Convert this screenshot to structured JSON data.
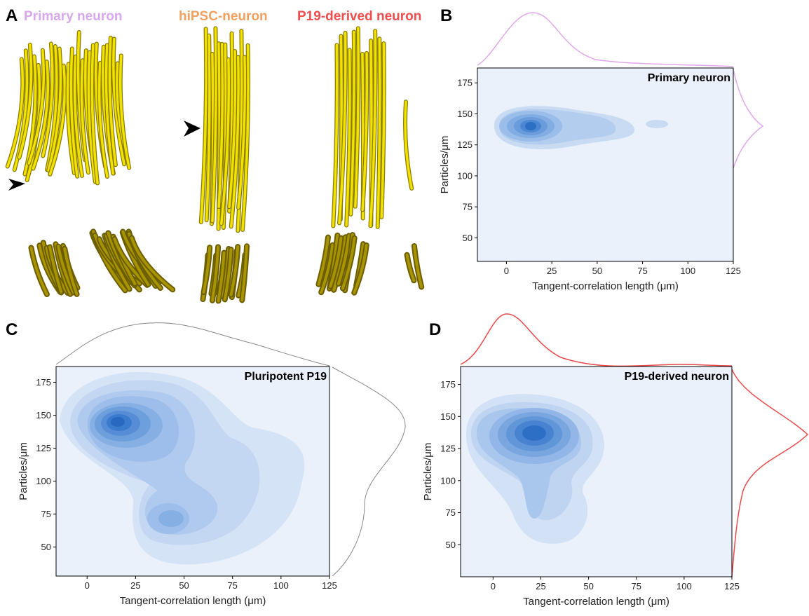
{
  "panel_labels": [
    "A",
    "B",
    "C",
    "D"
  ],
  "panel_a": {
    "titles": [
      "Primary neuron",
      "hiPSC-neuron",
      "P19-derived neuron"
    ],
    "colors": [
      "#d9a8ea",
      "#f0a060",
      "#ee4e4e"
    ]
  },
  "chart_data": [
    {
      "type": "kde2d",
      "label": "Primary neuron",
      "xlabel": "Tangent-correlation length (μm)",
      "ylabel": "Particles/μm",
      "xlim": [
        -16,
        125
      ],
      "ylim": [
        31,
        187
      ],
      "xticks": [
        0,
        25,
        50,
        75,
        100,
        125
      ],
      "yticks": [
        50,
        75,
        100,
        125,
        150,
        175
      ],
      "marginal_color": "#e0a8ea"
    },
    {
      "type": "kde2d",
      "label": "Pluripotent P19",
      "xlabel": "Tangent-correlation length (μm)",
      "ylabel": "Particles/μm",
      "xlim": [
        -16,
        125
      ],
      "ylim": [
        28,
        187
      ],
      "xticks": [
        0,
        25,
        50,
        75,
        100,
        125
      ],
      "yticks": [
        50,
        75,
        100,
        125,
        150,
        175
      ],
      "marginal_color": "#888888"
    },
    {
      "type": "kde2d",
      "label": "P19-derived neuron",
      "xlabel": "Tangent-correlation length (μm)",
      "ylabel": "Particles/μm",
      "xlim": [
        -17,
        125
      ],
      "ylim": [
        25,
        189
      ],
      "xticks": [
        0,
        25,
        50,
        75,
        100,
        125
      ],
      "yticks": [
        50,
        75,
        100,
        125,
        150,
        175
      ],
      "marginal_color": "#e84a4a"
    }
  ]
}
